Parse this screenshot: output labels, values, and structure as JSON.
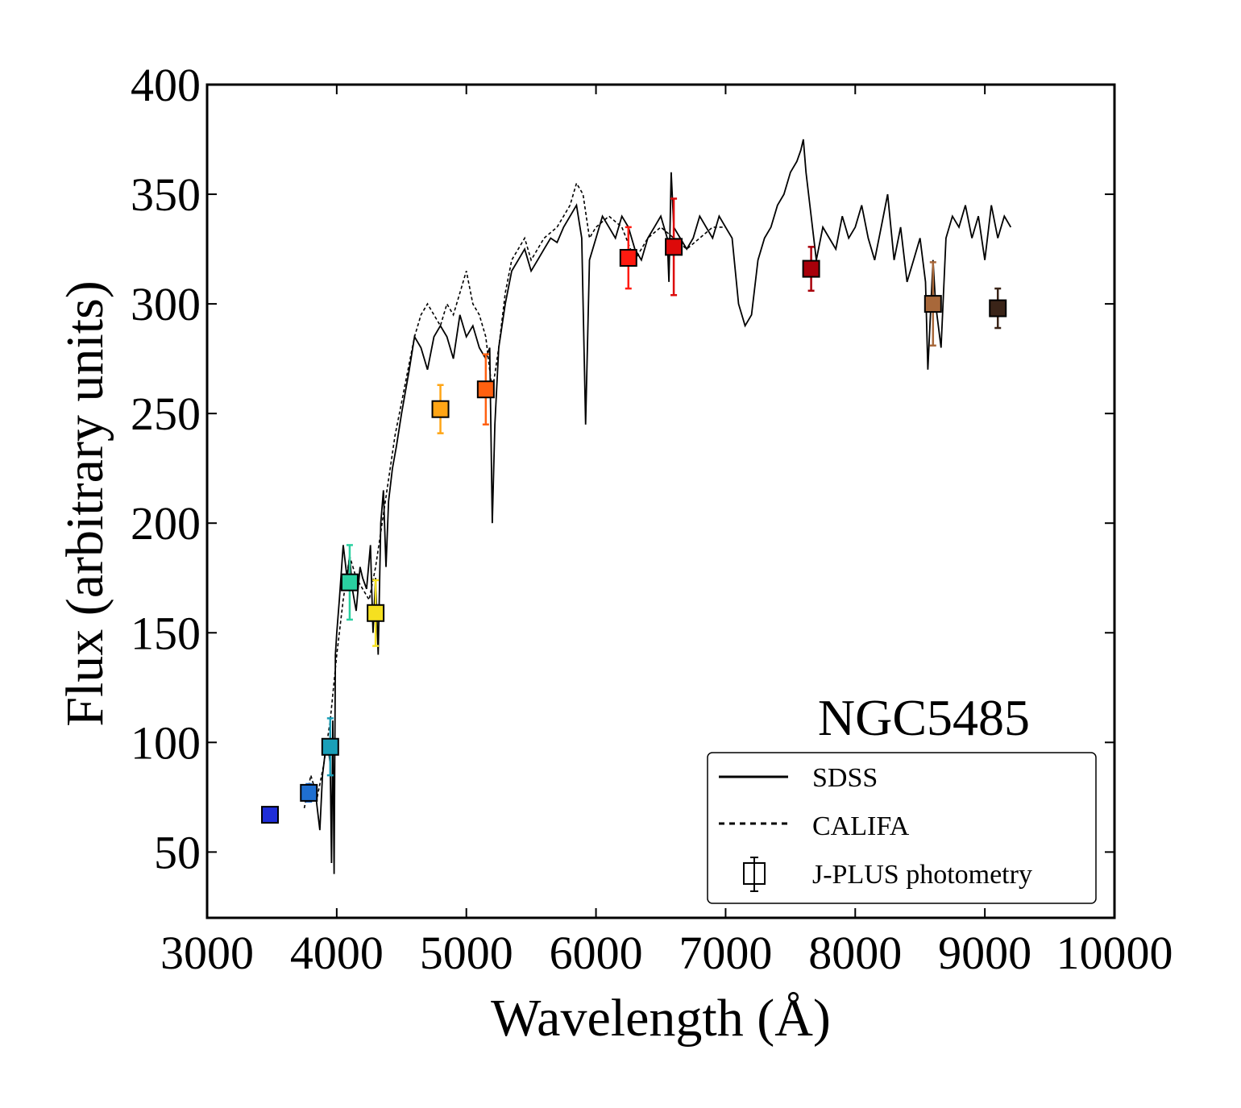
{
  "chart_data": {
    "type": "line",
    "title": "",
    "annotation": "NGC5485",
    "xlabel": "Wavelength (Å)",
    "ylabel": "Flux (arbitrary units)",
    "xlim": [
      3000,
      10000
    ],
    "ylim": [
      20,
      400
    ],
    "xticks": [
      3000,
      4000,
      5000,
      6000,
      7000,
      8000,
      9000,
      10000
    ],
    "xtick_labels": [
      "3000",
      "4000",
      "5000",
      "6000",
      "7000",
      "8000",
      "9000",
      "10000"
    ],
    "yticks": [
      50,
      100,
      150,
      200,
      250,
      300,
      350,
      400
    ],
    "ytick_labels": [
      "50",
      "100",
      "150",
      "200",
      "250",
      "300",
      "350",
      "400"
    ],
    "legend": {
      "placement": "lower-right",
      "entries": [
        {
          "label": "SDSS",
          "style": "solid"
        },
        {
          "label": "CALIFA",
          "style": "dashed"
        },
        {
          "label": "J-PLUS photometry",
          "style": "marker-errorbar"
        }
      ]
    },
    "series": [
      {
        "name": "SDSS",
        "style": "solid",
        "color": "#000000",
        "x": [
          3800,
          3830,
          3850,
          3870,
          3890,
          3910,
          3930,
          3950,
          3960,
          3970,
          3980,
          3990,
          4000,
          4020,
          4050,
          4080,
          4100,
          4120,
          4150,
          4180,
          4200,
          4230,
          4260,
          4280,
          4300,
          4320,
          4340,
          4360,
          4380,
          4400,
          4430,
          4460,
          4500,
          4530,
          4560,
          4600,
          4650,
          4700,
          4750,
          4800,
          4850,
          4900,
          4950,
          5000,
          5050,
          5100,
          5150,
          5180,
          5200,
          5220,
          5250,
          5300,
          5350,
          5400,
          5450,
          5500,
          5550,
          5600,
          5650,
          5700,
          5750,
          5800,
          5850,
          5890,
          5920,
          5950,
          6000,
          6050,
          6100,
          6150,
          6200,
          6250,
          6300,
          6350,
          6400,
          6450,
          6500,
          6550,
          6563,
          6580,
          6600,
          6650,
          6700,
          6750,
          6800,
          6850,
          6900,
          6950,
          7000,
          7050,
          7100,
          7150,
          7200,
          7250,
          7300,
          7350,
          7400,
          7450,
          7500,
          7550,
          7580,
          7600,
          7620,
          7650,
          7680,
          7700,
          7750,
          7800,
          7850,
          7900,
          7950,
          8000,
          8050,
          8100,
          8150,
          8200,
          8250,
          8300,
          8350,
          8400,
          8450,
          8500,
          8542,
          8560,
          8600,
          8620,
          8662,
          8700,
          8750,
          8800,
          8850,
          8900,
          8950,
          9000,
          9050,
          9100,
          9150,
          9200
        ],
        "y": [
          75,
          80,
          70,
          60,
          85,
          95,
          100,
          90,
          45,
          110,
          40,
          140,
          150,
          165,
          190,
          175,
          185,
          170,
          160,
          180,
          175,
          170,
          190,
          150,
          175,
          140,
          200,
          215,
          180,
          210,
          225,
          235,
          250,
          260,
          270,
          285,
          280,
          270,
          285,
          290,
          285,
          275,
          295,
          285,
          290,
          280,
          275,
          280,
          200,
          245,
          280,
          300,
          315,
          320,
          325,
          315,
          320,
          325,
          330,
          328,
          335,
          340,
          345,
          330,
          245,
          320,
          330,
          340,
          335,
          330,
          340,
          335,
          325,
          320,
          330,
          335,
          340,
          330,
          310,
          360,
          335,
          330,
          325,
          330,
          340,
          335,
          330,
          340,
          335,
          330,
          300,
          290,
          295,
          320,
          330,
          335,
          345,
          350,
          360,
          365,
          370,
          375,
          360,
          345,
          330,
          320,
          335,
          330,
          325,
          340,
          330,
          335,
          345,
          330,
          320,
          335,
          350,
          320,
          335,
          310,
          320,
          330,
          310,
          270,
          320,
          300,
          280,
          330,
          340,
          335,
          345,
          330,
          340,
          320,
          345,
          330,
          340,
          335
        ]
      },
      {
        "name": "CALIFA",
        "style": "dashed",
        "color": "#000000",
        "x": [
          3750,
          3800,
          3850,
          3900,
          3950,
          4000,
          4050,
          4100,
          4150,
          4200,
          4250,
          4300,
          4350,
          4400,
          4450,
          4500,
          4550,
          4600,
          4650,
          4700,
          4750,
          4800,
          4850,
          4900,
          4950,
          5000,
          5050,
          5100,
          5150,
          5200,
          5250,
          5300,
          5350,
          5400,
          5450,
          5500,
          5600,
          5700,
          5800,
          5850,
          5900,
          5950,
          6000,
          6100,
          6200,
          6300,
          6400,
          6500,
          6600,
          6700,
          6800,
          6900,
          7000
        ],
        "y": [
          70,
          85,
          75,
          90,
          110,
          140,
          165,
          185,
          175,
          170,
          165,
          180,
          200,
          220,
          240,
          255,
          270,
          285,
          295,
          300,
          295,
          290,
          300,
          295,
          305,
          315,
          300,
          295,
          285,
          260,
          280,
          305,
          320,
          325,
          330,
          320,
          330,
          335,
          345,
          355,
          350,
          330,
          335,
          340,
          335,
          320,
          330,
          335,
          330,
          325,
          330,
          335,
          335
        ]
      }
    ],
    "photometry": {
      "name": "J-PLUS photometry",
      "points": [
        {
          "x": 3485,
          "y": 67,
          "err": 3,
          "color": "#1f2ed8"
        },
        {
          "x": 3785,
          "y": 77,
          "err": 4,
          "color": "#1f6fd0"
        },
        {
          "x": 3950,
          "y": 98,
          "err": 13,
          "color": "#1a9fb8"
        },
        {
          "x": 4100,
          "y": 173,
          "err": 17,
          "color": "#2ad0a0"
        },
        {
          "x": 4300,
          "y": 159,
          "err": 15,
          "color": "#f5e020"
        },
        {
          "x": 4800,
          "y": 252,
          "err": 11,
          "color": "#ffa515"
        },
        {
          "x": 5150,
          "y": 261,
          "err": 16,
          "color": "#ff6010"
        },
        {
          "x": 6250,
          "y": 321,
          "err": 14,
          "color": "#ff1a10"
        },
        {
          "x": 6600,
          "y": 326,
          "err": 22,
          "color": "#dd0a0a"
        },
        {
          "x": 7660,
          "y": 316,
          "err": 10,
          "color": "#a8000a"
        },
        {
          "x": 8600,
          "y": 300,
          "err": 19,
          "color": "#a8683a"
        },
        {
          "x": 9100,
          "y": 298,
          "err": 9,
          "color": "#3a2418"
        }
      ]
    }
  }
}
